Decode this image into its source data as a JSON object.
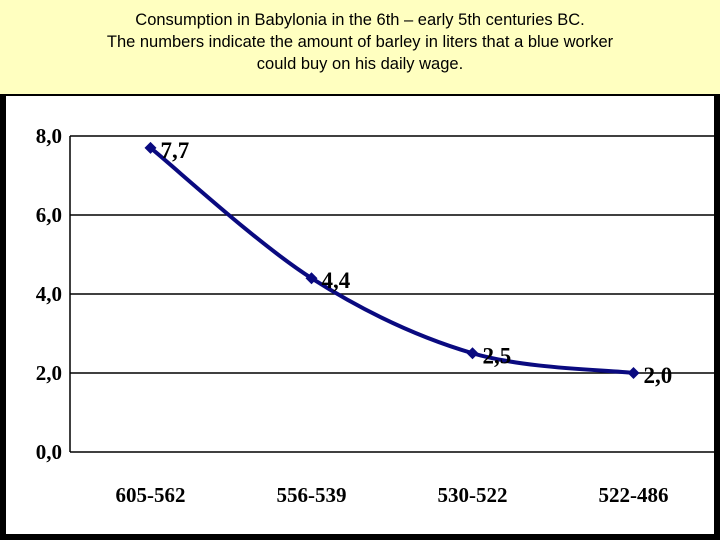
{
  "header": {
    "line1": "Consumption in Babylonia in the 6th – early 5th centuries BC.",
    "line2": "The numbers indicate the amount of barley in liters that a blue worker",
    "line3": "could buy on his daily wage."
  },
  "chart_data": {
    "type": "line",
    "title": "Consumption in Babylonia in the 6th – early 5th centuries BC.",
    "categories": [
      "605-562",
      "556-539",
      "530-522",
      "522-486"
    ],
    "series": [
      {
        "values": [
          7.7,
          4.4,
          2.5,
          2.0
        ],
        "data_labels": [
          "7,7",
          "4,4",
          "2,5",
          "2,0"
        ]
      }
    ],
    "ylim": [
      0,
      8
    ],
    "yticks": [
      0,
      2,
      4,
      6,
      8
    ],
    "ytick_labels": [
      "0,0",
      "2,0",
      "4,0",
      "6,0",
      "8,0"
    ],
    "grid": true,
    "legend": "none",
    "colors": {
      "line": "#0a0a80",
      "grid": "#000000",
      "plot_background": "#ffffff"
    }
  }
}
